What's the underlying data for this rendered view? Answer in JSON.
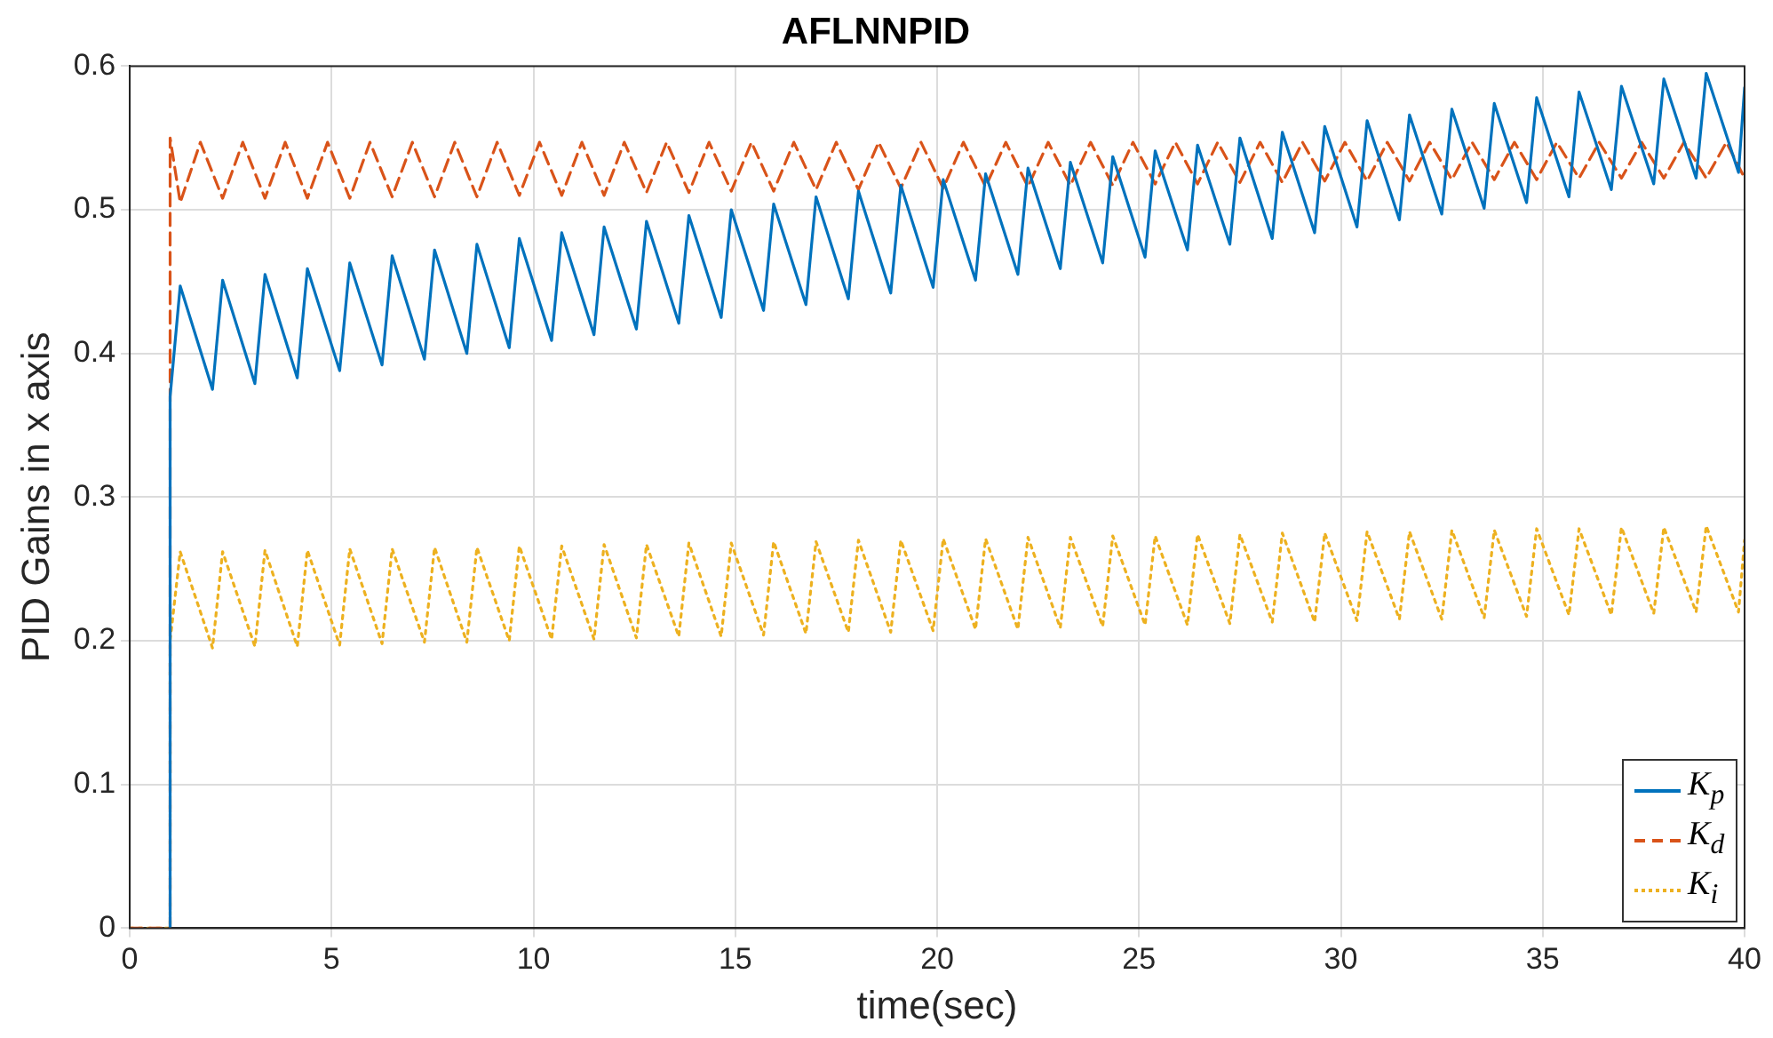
{
  "chart_data": {
    "type": "line",
    "title": "AFLNNPID",
    "xlabel": "time(sec)",
    "ylabel": "PID Gains in x axis",
    "xlim": [
      0,
      40
    ],
    "xticks": [
      0,
      5,
      10,
      15,
      20,
      25,
      30,
      35,
      40
    ],
    "ylim": [
      0,
      0.6
    ],
    "yticks": [
      0,
      0.1,
      0.2,
      0.3,
      0.4,
      0.5,
      0.6
    ],
    "grid": true,
    "legend": "bottom right",
    "marker": "none",
    "series": [
      {
        "name": "K$_{p}$",
        "color": "#0072bd",
        "line_style": "solid",
        "x": [
          1,
          1,
          1.25,
          2.05,
          2.3,
          3.1,
          3.35,
          4.15,
          4.4,
          5.2,
          5.45,
          6.25,
          6.5,
          7.3,
          7.55,
          8.35,
          8.6,
          9.4,
          9.65,
          10.45,
          10.7,
          11.5,
          11.75,
          12.55,
          12.8,
          13.6,
          13.85,
          14.65,
          14.9,
          15.7,
          15.95,
          16.75,
          17,
          17.8,
          18.05,
          18.85,
          19.1,
          19.9,
          20.15,
          20.95,
          21.2,
          22,
          22.25,
          23.05,
          23.3,
          24.1,
          24.35,
          25.15,
          25.4,
          26.2,
          26.45,
          27.25,
          27.5,
          28.3,
          28.55,
          29.35,
          29.6,
          30.4,
          30.65,
          31.45,
          31.7,
          32.5,
          32.75,
          33.55,
          33.8,
          34.6,
          34.85,
          35.65,
          35.9,
          36.7,
          36.95,
          37.75,
          38,
          38.8,
          39.05,
          39.85,
          40
        ],
        "values": [
          0,
          0.37,
          0.447,
          0.375,
          0.451,
          0.379,
          0.455,
          0.383,
          0.459,
          0.388,
          0.463,
          0.392,
          0.468,
          0.396,
          0.472,
          0.4,
          0.476,
          0.404,
          0.48,
          0.409,
          0.484,
          0.413,
          0.488,
          0.417,
          0.492,
          0.421,
          0.496,
          0.425,
          0.5,
          0.43,
          0.504,
          0.434,
          0.509,
          0.438,
          0.513,
          0.442,
          0.517,
          0.446,
          0.521,
          0.451,
          0.525,
          0.455,
          0.529,
          0.459,
          0.533,
          0.463,
          0.537,
          0.467,
          0.541,
          0.472,
          0.545,
          0.476,
          0.55,
          0.48,
          0.554,
          0.484,
          0.558,
          0.488,
          0.562,
          0.493,
          0.566,
          0.497,
          0.57,
          0.501,
          0.574,
          0.505,
          0.578,
          0.509,
          0.582,
          0.514,
          0.586,
          0.518,
          0.591,
          0.522,
          0.595,
          0.526,
          0.585
        ]
      },
      {
        "name": "K$_{d}$",
        "color": "#d95319",
        "line_style": "dashed",
        "x": [
          0,
          1,
          1,
          1.25,
          1.75,
          2.3,
          2.8,
          3.35,
          3.85,
          4.4,
          4.9,
          5.45,
          5.95,
          6.5,
          7,
          7.55,
          8.05,
          8.6,
          9.1,
          9.65,
          10.15,
          10.7,
          11.2,
          11.75,
          12.25,
          12.8,
          13.3,
          13.85,
          14.35,
          14.9,
          15.4,
          15.95,
          16.45,
          17,
          17.5,
          18.05,
          18.55,
          19.1,
          19.6,
          20.15,
          20.65,
          21.2,
          21.7,
          22.25,
          22.75,
          23.3,
          23.8,
          24.35,
          24.85,
          25.4,
          25.9,
          26.45,
          26.95,
          27.5,
          28,
          28.55,
          29.05,
          29.6,
          30.1,
          30.65,
          31.15,
          31.7,
          32.2,
          32.75,
          33.25,
          33.8,
          34.3,
          34.85,
          35.35,
          35.9,
          36.4,
          36.95,
          37.45,
          38,
          38.5,
          39.05,
          39.55,
          40
        ],
        "values": [
          0,
          0,
          0.55,
          0.505,
          0.547,
          0.508,
          0.547,
          0.508,
          0.547,
          0.508,
          0.547,
          0.508,
          0.547,
          0.509,
          0.547,
          0.509,
          0.547,
          0.509,
          0.547,
          0.51,
          0.547,
          0.51,
          0.547,
          0.51,
          0.547,
          0.512,
          0.547,
          0.512,
          0.547,
          0.513,
          0.547,
          0.513,
          0.547,
          0.514,
          0.547,
          0.514,
          0.547,
          0.515,
          0.547,
          0.515,
          0.547,
          0.516,
          0.547,
          0.516,
          0.547,
          0.517,
          0.547,
          0.517,
          0.547,
          0.518,
          0.547,
          0.518,
          0.547,
          0.519,
          0.547,
          0.519,
          0.547,
          0.52,
          0.547,
          0.52,
          0.547,
          0.52,
          0.547,
          0.521,
          0.547,
          0.521,
          0.547,
          0.521,
          0.547,
          0.522,
          0.547,
          0.522,
          0.547,
          0.522,
          0.547,
          0.522,
          0.547,
          0.522
        ]
      },
      {
        "name": "K$_{i}$",
        "color": "#edb120",
        "line_style": "dotted",
        "x": [
          0,
          1,
          1,
          1.25,
          2.05,
          2.3,
          3.1,
          3.35,
          4.15,
          4.4,
          5.2,
          5.45,
          6.25,
          6.5,
          7.3,
          7.55,
          8.35,
          8.6,
          9.4,
          9.65,
          10.45,
          10.7,
          11.5,
          11.75,
          12.55,
          12.8,
          13.6,
          13.85,
          14.65,
          14.9,
          15.7,
          15.95,
          16.75,
          17,
          17.8,
          18.05,
          18.85,
          19.1,
          19.9,
          20.15,
          20.95,
          21.2,
          22,
          22.25,
          23.05,
          23.3,
          24.1,
          24.35,
          25.15,
          25.4,
          26.2,
          26.45,
          27.25,
          27.5,
          28.3,
          28.55,
          29.35,
          29.6,
          30.4,
          30.65,
          31.45,
          31.7,
          32.5,
          32.75,
          33.55,
          33.8,
          34.6,
          34.85,
          35.65,
          35.9,
          36.7,
          36.95,
          37.75,
          38,
          38.8,
          39.05,
          39.85,
          40
        ],
        "values": [
          0,
          0,
          0.2,
          0.262,
          0.195,
          0.262,
          0.196,
          0.263,
          0.196,
          0.263,
          0.197,
          0.264,
          0.198,
          0.264,
          0.199,
          0.265,
          0.199,
          0.265,
          0.2,
          0.266,
          0.201,
          0.266,
          0.201,
          0.267,
          0.202,
          0.267,
          0.203,
          0.268,
          0.203,
          0.268,
          0.204,
          0.269,
          0.205,
          0.269,
          0.206,
          0.27,
          0.206,
          0.27,
          0.207,
          0.271,
          0.208,
          0.271,
          0.208,
          0.272,
          0.209,
          0.272,
          0.21,
          0.273,
          0.211,
          0.273,
          0.211,
          0.274,
          0.212,
          0.274,
          0.213,
          0.275,
          0.213,
          0.275,
          0.214,
          0.276,
          0.215,
          0.276,
          0.215,
          0.277,
          0.216,
          0.277,
          0.217,
          0.278,
          0.218,
          0.278,
          0.218,
          0.279,
          0.219,
          0.279,
          0.22,
          0.28,
          0.22,
          0.27
        ]
      }
    ]
  }
}
